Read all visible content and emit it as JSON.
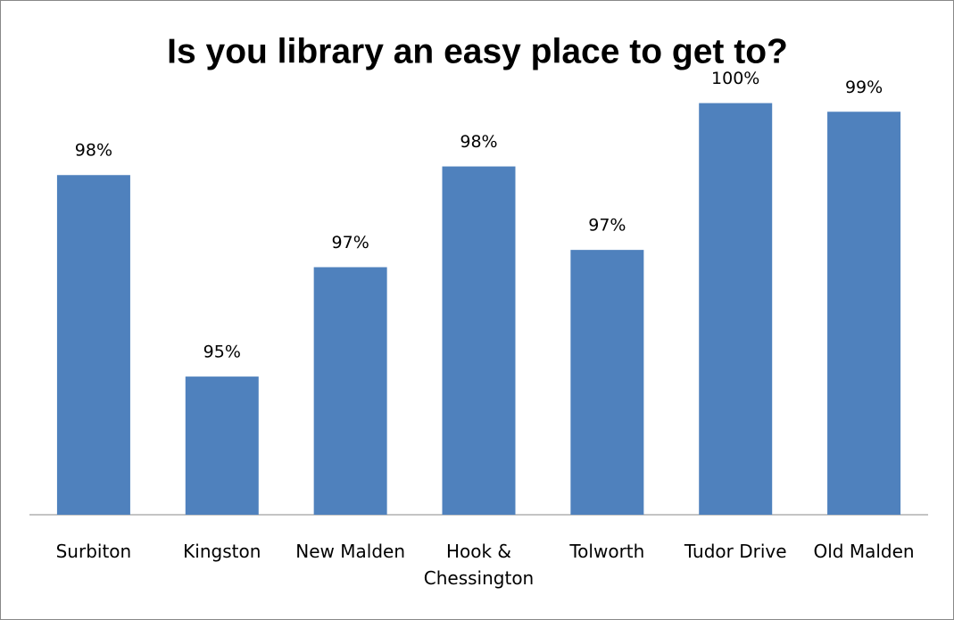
{
  "chart_data": {
    "type": "bar",
    "title": "Is you library an easy place to get to?",
    "categories": [
      "Surbiton",
      "Kingston",
      "New Malden",
      "Hook & Chessington",
      "Tolworth",
      "Tudor Drive",
      "Old Malden"
    ],
    "values": [
      98.3,
      94.8,
      96.7,
      98.45,
      97.0,
      99.55,
      99.4
    ],
    "value_labels": [
      "98%",
      "95%",
      "97%",
      "98%",
      "97%",
      "100%",
      "99%"
    ],
    "color": "#4f81bd",
    "ylim": [
      92.4,
      101
    ]
  }
}
